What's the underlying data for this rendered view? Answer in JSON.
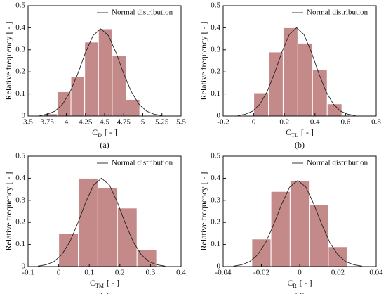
{
  "chart_data": [
    {
      "type": "histogram",
      "caption": "(a)",
      "ylabel": "Relative frequency [ - ]",
      "xlabel": {
        "symbol": "C",
        "subscript": "D",
        "unit": "[ - ]"
      },
      "bins": [
        3.7,
        3.88,
        4.06,
        4.24,
        4.42,
        4.6,
        4.78,
        4.96
      ],
      "values": [
        0.01,
        0.11,
        0.18,
        0.335,
        0.395,
        0.275,
        0.075
      ],
      "color": "#c48a8a",
      "xlim": [
        3.5,
        5.5
      ],
      "xticks": [
        3.5,
        3.75,
        4,
        4.25,
        4.5,
        4.75,
        5,
        5.25,
        5.5
      ],
      "ylim": [
        0,
        0.5
      ],
      "yticks": [
        0,
        0.1,
        0.2,
        0.3,
        0.4,
        0.5
      ],
      "legend": "upper right",
      "curve": {
        "name": "Normal distribution",
        "color": "#222222",
        "x": [
          3.65,
          3.75,
          3.85,
          3.95,
          4.05,
          4.15,
          4.25,
          4.35,
          4.45,
          4.55,
          4.65,
          4.75,
          4.85,
          4.95,
          5.05,
          5.15,
          5.25
        ],
        "y": [
          0.002,
          0.008,
          0.022,
          0.053,
          0.11,
          0.192,
          0.287,
          0.365,
          0.395,
          0.365,
          0.287,
          0.192,
          0.11,
          0.053,
          0.022,
          0.008,
          0.002
        ]
      }
    },
    {
      "type": "histogram",
      "caption": "(b)",
      "ylabel": "Relative frequency [ - ]",
      "xlabel": {
        "symbol": "C",
        "subscript": "TL",
        "unit": "[ - ]"
      },
      "bins": [
        0,
        0.096,
        0.192,
        0.288,
        0.384,
        0.48,
        0.576
      ],
      "values": [
        0.105,
        0.29,
        0.4,
        0.33,
        0.21,
        0.055
      ],
      "color": "#c48a8a",
      "xlim": [
        -0.2,
        0.8
      ],
      "xticks": [
        -0.2,
        0,
        0.2,
        0.4,
        0.6,
        0.8
      ],
      "ylim": [
        0,
        0.5
      ],
      "yticks": [
        0,
        0.1,
        0.2,
        0.3,
        0.4,
        0.5
      ],
      "legend": "upper right",
      "curve": {
        "name": "Normal distribution",
        "color": "#222222",
        "x": [
          -0.104,
          -0.056,
          -0.008,
          0.04,
          0.088,
          0.136,
          0.184,
          0.232,
          0.28,
          0.328,
          0.376,
          0.424,
          0.472,
          0.52,
          0.568,
          0.616,
          0.664
        ],
        "y": [
          0.002,
          0.008,
          0.022,
          0.054,
          0.111,
          0.195,
          0.29,
          0.369,
          0.4,
          0.369,
          0.29,
          0.195,
          0.111,
          0.054,
          0.022,
          0.008,
          0.002
        ]
      }
    },
    {
      "type": "histogram",
      "caption": "(c)",
      "ylabel": "Relative frequency [ - ]",
      "xlabel": {
        "symbol": "C",
        "subscript": "TM",
        "unit": "[ - ]"
      },
      "bins": [
        0,
        0.064,
        0.128,
        0.192,
        0.256,
        0.32
      ],
      "values": [
        0.15,
        0.4,
        0.355,
        0.265,
        0.075
      ],
      "color": "#c48a8a",
      "xlim": [
        -0.1,
        0.4
      ],
      "xticks": [
        -0.1,
        0,
        0.1,
        0.2,
        0.3,
        0.4
      ],
      "ylim": [
        0,
        0.5
      ],
      "yticks": [
        0,
        0.1,
        0.2,
        0.3,
        0.4,
        0.5
      ],
      "legend": "upper right",
      "curve": {
        "name": "Normal distribution",
        "color": "#222222",
        "x": [
          -0.068,
          -0.042,
          -0.016,
          0.01,
          0.036,
          0.062,
          0.088,
          0.114,
          0.14,
          0.166,
          0.192,
          0.218,
          0.244,
          0.27,
          0.296,
          0.322,
          0.348
        ],
        "y": [
          0.002,
          0.008,
          0.022,
          0.054,
          0.111,
          0.195,
          0.29,
          0.369,
          0.4,
          0.369,
          0.29,
          0.195,
          0.111,
          0.054,
          0.022,
          0.008,
          0.002
        ]
      }
    },
    {
      "type": "histogram",
      "caption": "(d)",
      "ylabel": "Relative frequency [ - ]",
      "xlabel": {
        "symbol": "C",
        "subscript": "R",
        "unit": "[ - ]"
      },
      "bins": [
        -0.025,
        -0.015,
        -0.005,
        0.005,
        0.015,
        0.025
      ],
      "values": [
        0.125,
        0.34,
        0.39,
        0.28,
        0.09
      ],
      "color": "#c48a8a",
      "xlim": [
        -0.04,
        0.04
      ],
      "xticks": [
        -0.04,
        -0.02,
        0,
        0.02,
        0.04
      ],
      "ylim": [
        0,
        0.5
      ],
      "yticks": [
        0,
        0.1,
        0.2,
        0.3,
        0.4,
        0.5
      ],
      "legend": "upper right",
      "curve": {
        "name": "Normal distribution",
        "color": "#222222",
        "x": [
          -0.0346,
          -0.0304,
          -0.0262,
          -0.022,
          -0.0178,
          -0.0136,
          -0.0094,
          -0.0052,
          -0.001,
          0.0032,
          0.0074,
          0.0116,
          0.0158,
          0.02,
          0.0242,
          0.0284,
          0.0326
        ],
        "y": [
          0.002,
          0.008,
          0.022,
          0.053,
          0.108,
          0.19,
          0.283,
          0.36,
          0.39,
          0.36,
          0.283,
          0.19,
          0.108,
          0.053,
          0.022,
          0.008,
          0.002
        ]
      }
    }
  ]
}
